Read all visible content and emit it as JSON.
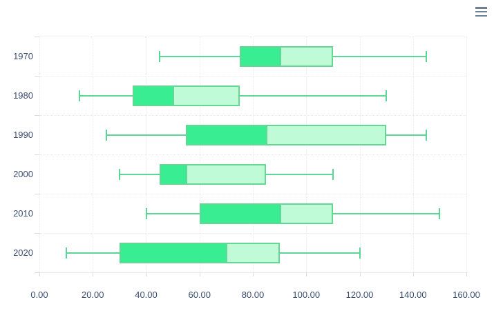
{
  "toolbar": {
    "menu_icon": "hamburger-menu-icon"
  },
  "chart_data": {
    "type": "boxplot",
    "orientation": "horizontal",
    "title": "",
    "xlabel": "",
    "ylabel": "",
    "legend": "none",
    "grid": true,
    "categories": [
      "1970",
      "1980",
      "1990",
      "2000",
      "2010",
      "2020"
    ],
    "series": [
      {
        "name": "box",
        "data": [
          {
            "x": "1970",
            "y": [
              45,
              75,
              90,
              110,
              145
            ]
          },
          {
            "x": "1980",
            "y": [
              15,
              35,
              50,
              75,
              130
            ]
          },
          {
            "x": "1990",
            "y": [
              25,
              55,
              85,
              130,
              145
            ]
          },
          {
            "x": "2000",
            "y": [
              30,
              45,
              55,
              85,
              110
            ]
          },
          {
            "x": "2010",
            "y": [
              40,
              60,
              90,
              110,
              150
            ]
          },
          {
            "x": "2020",
            "y": [
              10,
              30,
              70,
              90,
              120
            ]
          }
        ]
      }
    ],
    "x_axis": {
      "min": 0,
      "max": 160,
      "tick_interval": 20,
      "tick_labels": [
        "0.00",
        "20.00",
        "40.00",
        "60.00",
        "80.00",
        "100.00",
        "120.00",
        "140.00",
        "160.00"
      ]
    },
    "colors": {
      "box_lower": "#39EE92",
      "box_upper": "#BEFBD6",
      "box_border": "#66D695",
      "whisker": "#5AD696",
      "label": "#3B4C6E",
      "grid_line": "#E9EAF1",
      "axis_line": "#E6E7ED",
      "tick": "#D8DBE2",
      "menu_icon": "#6E8192",
      "background": "#FFFFFF"
    }
  }
}
